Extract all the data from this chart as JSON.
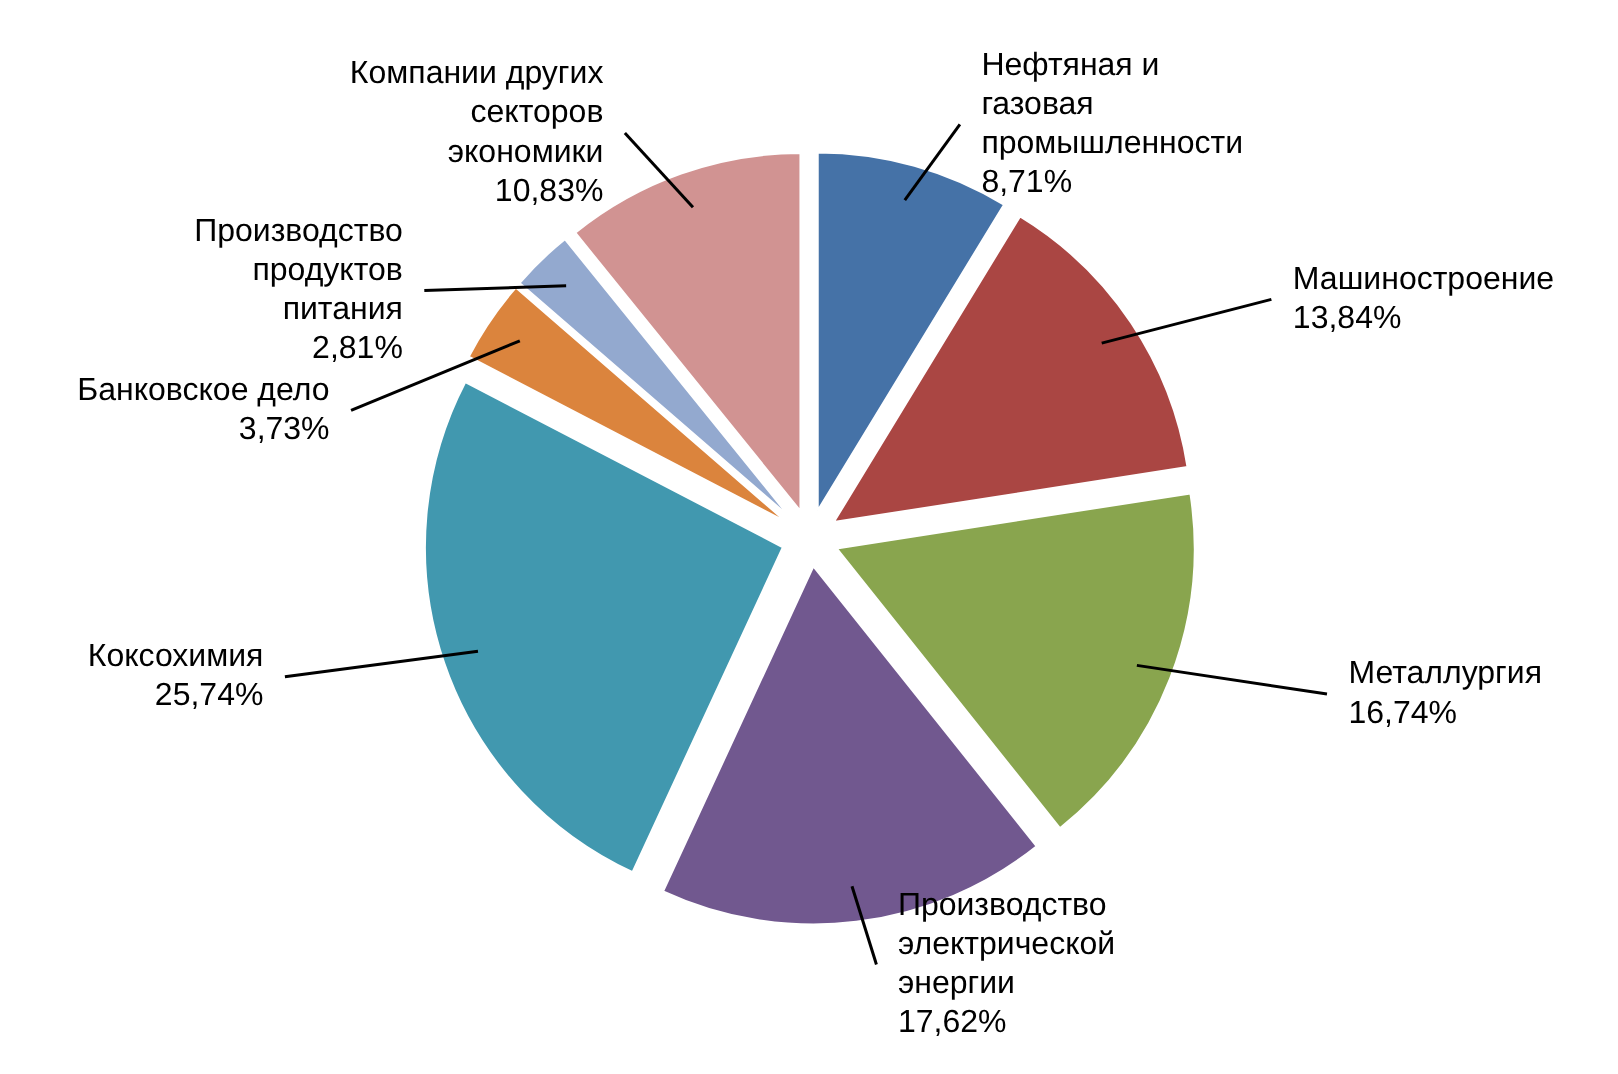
{
  "chart_data": {
    "type": "pie",
    "categories": [
      "Нефтяная и газовая промышленности",
      "Машиностроение",
      "Металлургия",
      "Производство электрической энергии",
      "Коксохимия",
      "Банковское дело",
      "Производство продуктов питания",
      "Компании других секторов экономики"
    ],
    "values": [
      8.71,
      13.84,
      16.74,
      17.62,
      25.74,
      3.73,
      2.81,
      10.83
    ],
    "colors": [
      "#4572a7",
      "#aa4643",
      "#89a54e",
      "#71588f",
      "#4198af",
      "#db843d",
      "#93a9cf",
      "#d19392"
    ],
    "value_labels": [
      "8,71%",
      "13,84%",
      "16,74%",
      "17,62%",
      "25,74%",
      "3,73%",
      "2,81%",
      "10,83%"
    ]
  }
}
